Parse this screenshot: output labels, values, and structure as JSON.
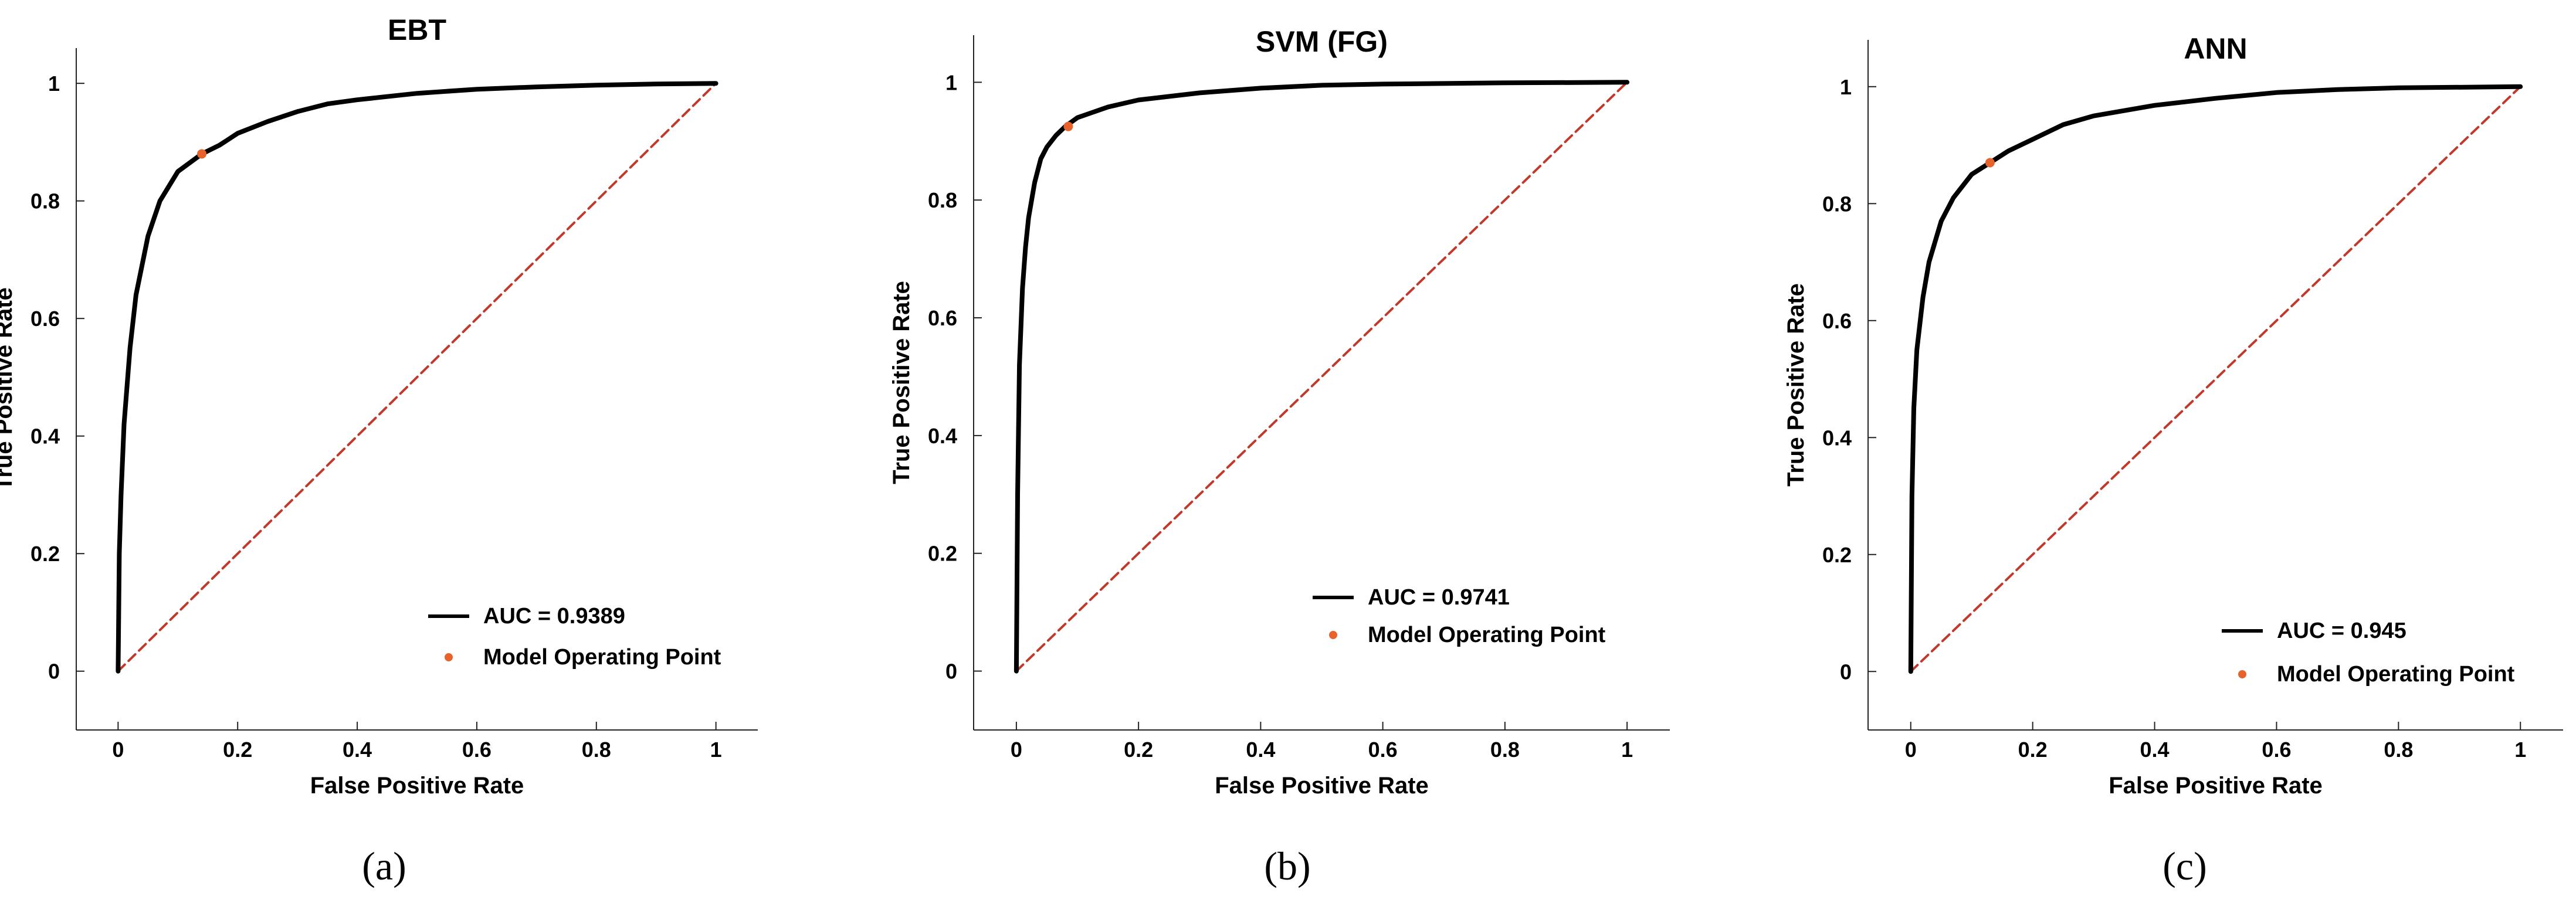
{
  "chart_data": [
    {
      "type": "line",
      "title": "EBT",
      "xlabel": "False Positive Rate",
      "ylabel": "True Positive Rate",
      "xlim": [
        -0.07,
        1.07
      ],
      "ylim": [
        -0.1,
        1.06
      ],
      "xticks": [
        0,
        0.2,
        0.4,
        0.6,
        0.8,
        1
      ],
      "yticks": [
        0,
        0.2,
        0.4,
        0.6,
        0.8,
        1
      ],
      "xtick_labels": [
        "0",
        "0.2",
        "0.4",
        "0.6",
        "0.8",
        "1"
      ],
      "ytick_labels": [
        "0",
        "0.2",
        "0.4",
        "0.6",
        "0.8",
        "1"
      ],
      "grid": false,
      "legend_position": "bottom-right",
      "series": [
        {
          "name": "AUC = 0.9389",
          "style": "solid",
          "color": "#000000",
          "x": [
            0,
            0.002,
            0.005,
            0.01,
            0.02,
            0.03,
            0.05,
            0.07,
            0.1,
            0.12,
            0.14,
            0.17,
            0.2,
            0.25,
            0.3,
            0.35,
            0.4,
            0.5,
            0.6,
            0.7,
            0.8,
            0.9,
            1.0
          ],
          "y": [
            0,
            0.2,
            0.3,
            0.42,
            0.55,
            0.64,
            0.74,
            0.8,
            0.85,
            0.865,
            0.88,
            0.895,
            0.915,
            0.935,
            0.952,
            0.965,
            0.972,
            0.983,
            0.99,
            0.994,
            0.997,
            0.999,
            1.0
          ]
        },
        {
          "name": "chance",
          "style": "dashed",
          "color": "#C0392B",
          "x": [
            0,
            1
          ],
          "y": [
            0,
            1
          ]
        }
      ],
      "operating_point": {
        "name": "Model Operating Point",
        "x": 0.14,
        "y": 0.88,
        "color": "#E8622C"
      },
      "legend": [
        "AUC = 0.9389",
        "Model Operating Point"
      ],
      "caption": "(a)"
    },
    {
      "type": "line",
      "title": "SVM (FG)",
      "xlabel": "False Positive Rate",
      "ylabel": "True Positive Rate",
      "xlim": [
        -0.07,
        1.07
      ],
      "ylim": [
        -0.1,
        1.08
      ],
      "xticks": [
        0,
        0.2,
        0.4,
        0.6,
        0.8,
        1
      ],
      "yticks": [
        0,
        0.2,
        0.4,
        0.6,
        0.8,
        1
      ],
      "xtick_labels": [
        "0",
        "0.2",
        "0.4",
        "0.6",
        "0.8",
        "1"
      ],
      "ytick_labels": [
        "0",
        "0.2",
        "0.4",
        "0.6",
        "0.8",
        "1"
      ],
      "grid": false,
      "legend_position": "bottom-right",
      "series": [
        {
          "name": "AUC = 0.9741",
          "style": "solid",
          "color": "#000000",
          "x": [
            0,
            0.002,
            0.005,
            0.01,
            0.015,
            0.02,
            0.03,
            0.04,
            0.05,
            0.065,
            0.08,
            0.1,
            0.15,
            0.2,
            0.3,
            0.4,
            0.5,
            0.6,
            0.8,
            1.0
          ],
          "y": [
            0,
            0.3,
            0.52,
            0.65,
            0.72,
            0.77,
            0.83,
            0.87,
            0.89,
            0.91,
            0.925,
            0.94,
            0.958,
            0.97,
            0.982,
            0.99,
            0.995,
            0.997,
            0.999,
            1.0
          ]
        },
        {
          "name": "chance",
          "style": "dashed",
          "color": "#C0392B",
          "x": [
            0,
            1
          ],
          "y": [
            0,
            1
          ]
        }
      ],
      "operating_point": {
        "name": "Model Operating Point",
        "x": 0.085,
        "y": 0.925,
        "color": "#E8622C"
      },
      "legend": [
        "AUC = 0.9741",
        "Model Operating Point"
      ],
      "caption": "(b)"
    },
    {
      "type": "line",
      "title": "ANN",
      "xlabel": "False Positive Rate",
      "ylabel": "True Positive Rate",
      "xlim": [
        -0.07,
        1.07
      ],
      "ylim": [
        -0.1,
        1.08
      ],
      "xticks": [
        0,
        0.2,
        0.4,
        0.6,
        0.8,
        1
      ],
      "yticks": [
        0,
        0.2,
        0.4,
        0.6,
        0.8,
        1
      ],
      "xtick_labels": [
        "0",
        "0.2",
        "0.4",
        "0.6",
        "0.8",
        "1"
      ],
      "ytick_labels": [
        "0",
        "0.2",
        "0.4",
        "0.6",
        "0.8",
        "1"
      ],
      "grid": false,
      "legend_position": "bottom-right",
      "series": [
        {
          "name": "AUC = 0.945",
          "style": "solid",
          "color": "#000000",
          "x": [
            0,
            0.002,
            0.005,
            0.01,
            0.02,
            0.03,
            0.05,
            0.07,
            0.1,
            0.13,
            0.16,
            0.2,
            0.25,
            0.3,
            0.4,
            0.5,
            0.6,
            0.7,
            0.8,
            1.0
          ],
          "y": [
            0,
            0.3,
            0.45,
            0.55,
            0.64,
            0.7,
            0.77,
            0.81,
            0.85,
            0.87,
            0.89,
            0.91,
            0.935,
            0.95,
            0.968,
            0.98,
            0.99,
            0.995,
            0.998,
            1.0
          ]
        },
        {
          "name": "chance",
          "style": "dashed",
          "color": "#C0392B",
          "x": [
            0,
            1
          ],
          "y": [
            0,
            1
          ]
        }
      ],
      "operating_point": {
        "name": "Model Operating Point",
        "x": 0.13,
        "y": 0.87,
        "color": "#E8622C"
      },
      "legend": [
        "AUC = 0.945",
        "Model Operating Point"
      ],
      "caption": "(c)"
    }
  ]
}
